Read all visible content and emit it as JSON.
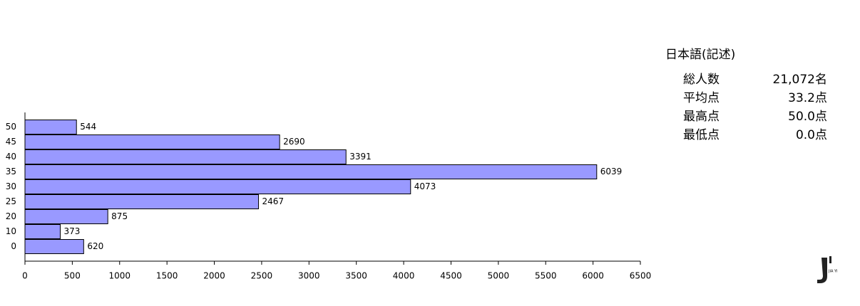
{
  "chart_data": {
    "type": "bar",
    "orientation": "horizontal",
    "categories": [
      "50",
      "45",
      "40",
      "35",
      "30",
      "25",
      "20",
      "10",
      "0"
    ],
    "values": [
      544,
      2690,
      3391,
      6039,
      4073,
      2467,
      875,
      373,
      620
    ],
    "color": "#9999ff",
    "xlim": [
      0,
      6500
    ],
    "xticks": [
      0,
      500,
      1000,
      1500,
      2000,
      2500,
      3000,
      3500,
      4000,
      4500,
      5000,
      5500,
      6000,
      6500
    ],
    "grid": false
  },
  "stats": {
    "title": "日本語(記述)",
    "rows": [
      [
        "総人数",
        "21,072名"
      ],
      [
        "平均点",
        "33.2点"
      ],
      [
        "最高点",
        "50.0点"
      ],
      [
        "最低点",
        "0.0点"
      ]
    ]
  },
  "logo": {
    "text": "JIA YI"
  }
}
